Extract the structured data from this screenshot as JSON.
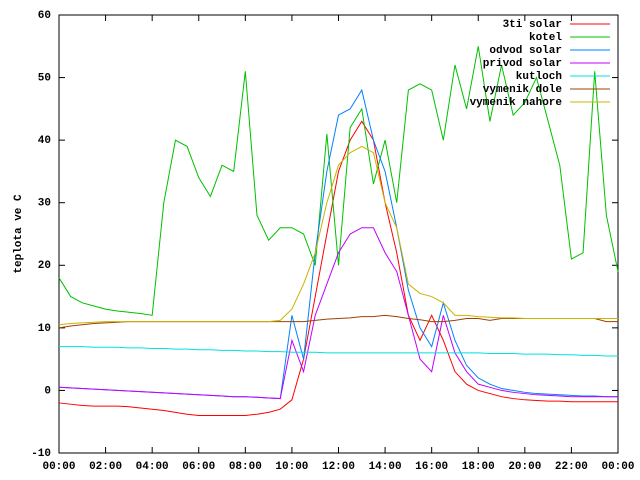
{
  "chart_data": {
    "type": "line",
    "y_label": "teplota ve C",
    "x": [
      0,
      0.5,
      1,
      1.5,
      2,
      2.5,
      3,
      3.5,
      4,
      4.5,
      5,
      5.5,
      6,
      6.5,
      7,
      7.5,
      8,
      8.5,
      9,
      9.5,
      10,
      10.5,
      11,
      11.5,
      12,
      12.5,
      13,
      13.5,
      14,
      14.5,
      15,
      15.5,
      16,
      16.5,
      17,
      17.5,
      18,
      18.5,
      19,
      19.5,
      20,
      20.5,
      21,
      21.5,
      22,
      22.5,
      23,
      23.5,
      24
    ],
    "xlim": [
      0,
      24
    ],
    "xticks": [
      {
        "value": 0,
        "label": "00:00"
      },
      {
        "value": 2,
        "label": "02:00"
      },
      {
        "value": 4,
        "label": "04:00"
      },
      {
        "value": 6,
        "label": "06:00"
      },
      {
        "value": 8,
        "label": "08:00"
      },
      {
        "value": 10,
        "label": "10:00"
      },
      {
        "value": 12,
        "label": "12:00"
      },
      {
        "value": 14,
        "label": "14:00"
      },
      {
        "value": 16,
        "label": "16:00"
      },
      {
        "value": 18,
        "label": "18:00"
      },
      {
        "value": 20,
        "label": "20:00"
      },
      {
        "value": 22,
        "label": "22:00"
      },
      {
        "value": 24,
        "label": "00:00"
      }
    ],
    "ylim": [
      -10,
      60
    ],
    "yticks": [
      -10,
      0,
      10,
      20,
      30,
      40,
      50,
      60
    ],
    "grid": false,
    "legend": "top-right",
    "series": [
      {
        "name": "3ti solar",
        "color": "#ff0000",
        "values": [
          -2,
          -2.2,
          -2.4,
          -2.5,
          -2.5,
          -2.5,
          -2.6,
          -2.8,
          -3,
          -3.2,
          -3.5,
          -3.8,
          -4,
          -4,
          -4,
          -4,
          -4,
          -3.8,
          -3.5,
          -3,
          -1.5,
          5,
          15,
          25,
          35,
          40,
          43,
          40,
          30,
          22,
          12,
          8,
          12,
          8,
          3,
          1,
          0,
          -0.5,
          -1,
          -1.3,
          -1.5,
          -1.6,
          -1.7,
          -1.7,
          -1.8,
          -1.8,
          -1.8,
          -1.8,
          -1.8
        ]
      },
      {
        "name": "kotel",
        "color": "#00c000",
        "values": [
          18,
          15,
          14,
          13.5,
          13,
          12.7,
          12.5,
          12.3,
          12,
          30,
          40,
          39,
          34,
          31,
          36,
          35,
          51,
          28,
          24,
          26,
          26,
          25,
          20,
          41,
          20,
          42,
          45,
          33,
          40,
          30,
          48,
          49,
          48,
          40,
          52,
          45,
          55,
          43,
          52,
          44,
          46,
          50,
          43,
          36,
          21,
          22,
          51,
          28,
          19
        ]
      },
      {
        "name": "odvod solar",
        "color": "#0080ff",
        "values": [
          0.5,
          0.4,
          0.3,
          0.2,
          0.1,
          0,
          -0.1,
          -0.2,
          -0.3,
          -0.4,
          -0.5,
          -0.6,
          -0.7,
          -0.8,
          -0.9,
          -1,
          -1,
          -1.1,
          -1.2,
          -1.3,
          12,
          5,
          22,
          35,
          44,
          45,
          48,
          40,
          35,
          26,
          16,
          10,
          7,
          14,
          8,
          4,
          2,
          1,
          0.3,
          0,
          -0.3,
          -0.5,
          -0.6,
          -0.7,
          -0.8,
          -0.9,
          -0.9,
          -1,
          -1
        ]
      },
      {
        "name": "privod solar",
        "color": "#c000ff",
        "values": [
          0.5,
          0.4,
          0.3,
          0.2,
          0.1,
          0,
          -0.1,
          -0.2,
          -0.3,
          -0.4,
          -0.5,
          -0.6,
          -0.7,
          -0.8,
          -0.9,
          -1,
          -1,
          -1.1,
          -1.2,
          -1.3,
          8,
          3,
          12,
          17,
          22,
          25,
          26,
          26,
          22,
          19,
          12,
          5,
          3,
          12,
          6,
          3,
          1,
          0.5,
          0,
          -0.3,
          -0.5,
          -0.7,
          -0.8,
          -0.9,
          -1,
          -1,
          -1,
          -1,
          -1
        ]
      },
      {
        "name": "kutloch",
        "color": "#00e0e0",
        "values": [
          7,
          7,
          7,
          6.9,
          6.9,
          6.9,
          6.8,
          6.8,
          6.7,
          6.7,
          6.6,
          6.6,
          6.5,
          6.5,
          6.4,
          6.4,
          6.3,
          6.3,
          6.2,
          6.2,
          6.1,
          6.1,
          6.1,
          6,
          6,
          6,
          6,
          6,
          6,
          6,
          6,
          6,
          6,
          6,
          6,
          6,
          6,
          5.9,
          5.9,
          5.9,
          5.8,
          5.8,
          5.8,
          5.7,
          5.7,
          5.6,
          5.6,
          5.5,
          5.5
        ]
      },
      {
        "name": "vymenik dole",
        "color": "#a04000",
        "values": [
          10,
          10.3,
          10.5,
          10.7,
          10.8,
          10.9,
          11,
          11,
          11,
          11,
          11,
          11,
          11,
          11,
          11,
          11,
          11,
          11,
          11,
          11,
          11,
          11,
          11.2,
          11.4,
          11.5,
          11.6,
          11.8,
          11.8,
          12,
          11.8,
          11.5,
          11.3,
          11,
          11,
          11.2,
          11.5,
          11.5,
          11.2,
          11.5,
          11.5,
          11.5,
          11.5,
          11.5,
          11.5,
          11.5,
          11.5,
          11.5,
          11,
          11
        ]
      },
      {
        "name": "vymenik nahore",
        "color": "#c8b400",
        "values": [
          10.5,
          10.7,
          10.8,
          10.9,
          11,
          11,
          11,
          11,
          11,
          11,
          11,
          11,
          11,
          11,
          11,
          11,
          11,
          11,
          11,
          11.2,
          13,
          17,
          22,
          30,
          36,
          38,
          39,
          38,
          30,
          26,
          17,
          15.5,
          15,
          14,
          12,
          12,
          11.8,
          11.7,
          11.6,
          11.6,
          11.5,
          11.5,
          11.5,
          11.5,
          11.5,
          11.5,
          11.5,
          11.5,
          11.5
        ]
      }
    ]
  }
}
